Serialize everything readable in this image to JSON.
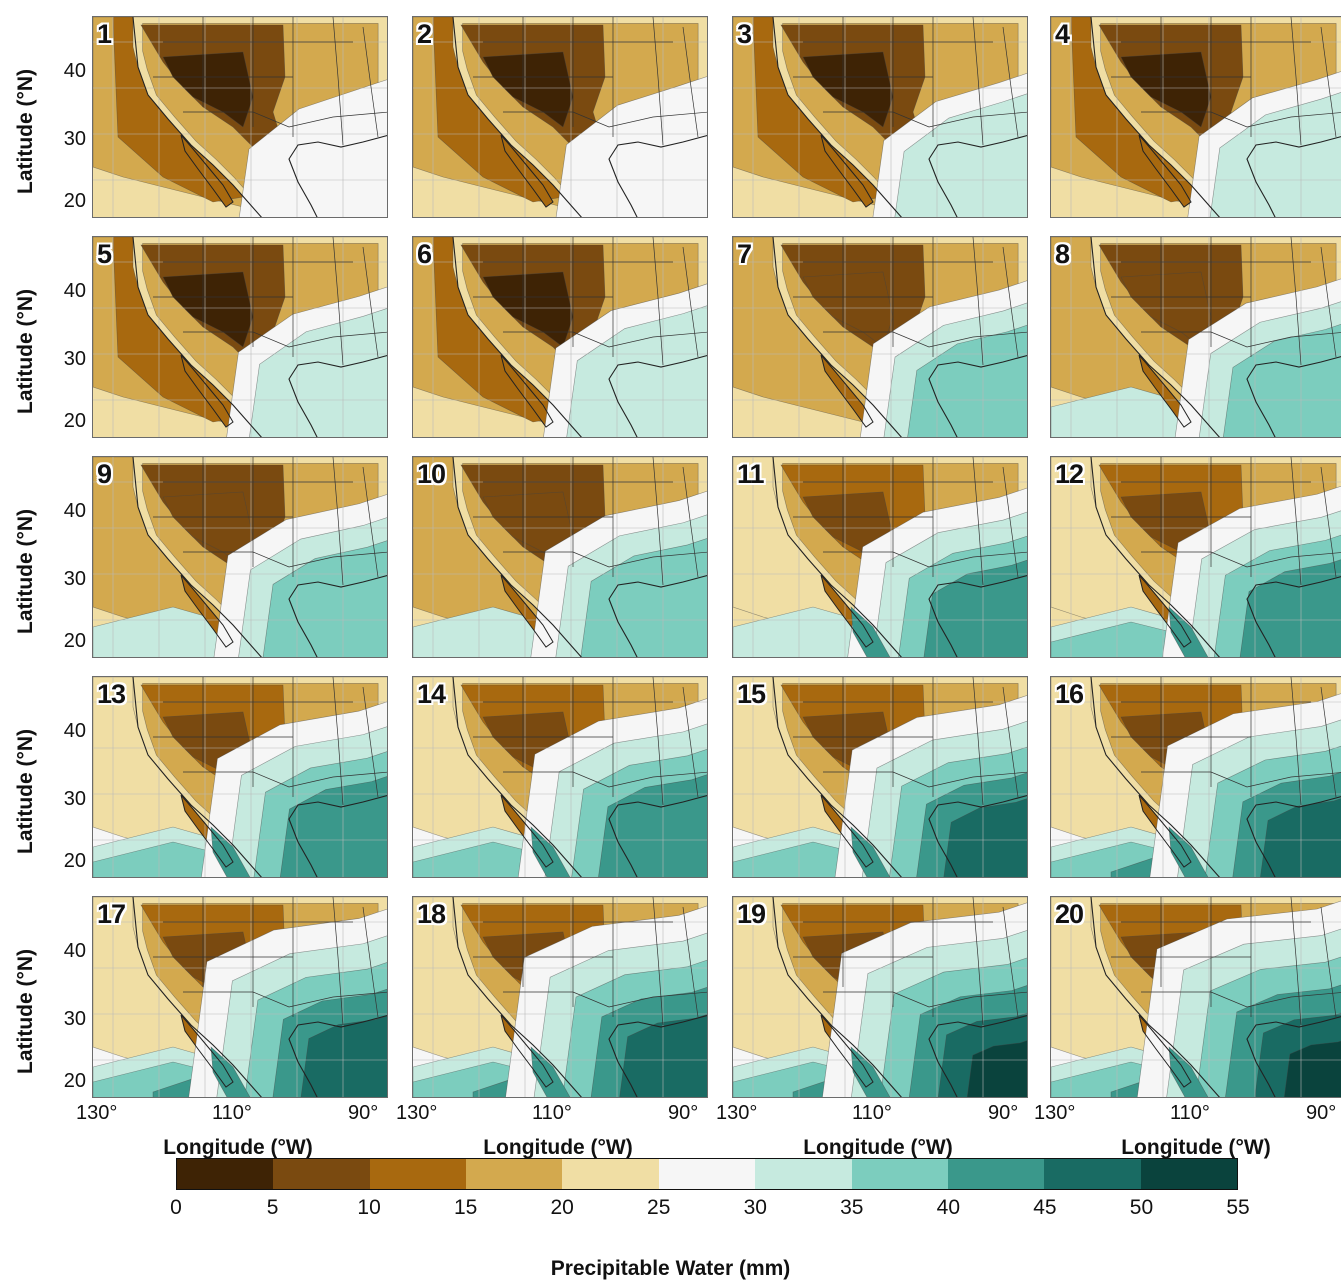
{
  "figure": {
    "panels": [
      "1",
      "2",
      "3",
      "4",
      "5",
      "6",
      "7",
      "8",
      "9",
      "10",
      "11",
      "12",
      "13",
      "14",
      "15",
      "16",
      "17",
      "18",
      "19",
      "20"
    ],
    "y_axis_label": "Latitude (°N)",
    "y_ticks": [
      "40",
      "30",
      "20"
    ],
    "x_axis_label": "Longitude (°W)",
    "x_ticks": [
      "130°",
      "110°",
      "90°"
    ]
  },
  "colorbar": {
    "title": "Precipitable Water (mm)",
    "ticks": [
      "0",
      "5",
      "10",
      "15",
      "20",
      "25",
      "30",
      "35",
      "40",
      "45",
      "50",
      "55"
    ],
    "colors": [
      "#3e2305",
      "#7a4a10",
      "#a8690f",
      "#d3a94e",
      "#f0dea4",
      "#f6f6f6",
      "#c6eadf",
      "#7ccdbe",
      "#3a988b",
      "#196b63",
      "#0a433d"
    ]
  }
}
